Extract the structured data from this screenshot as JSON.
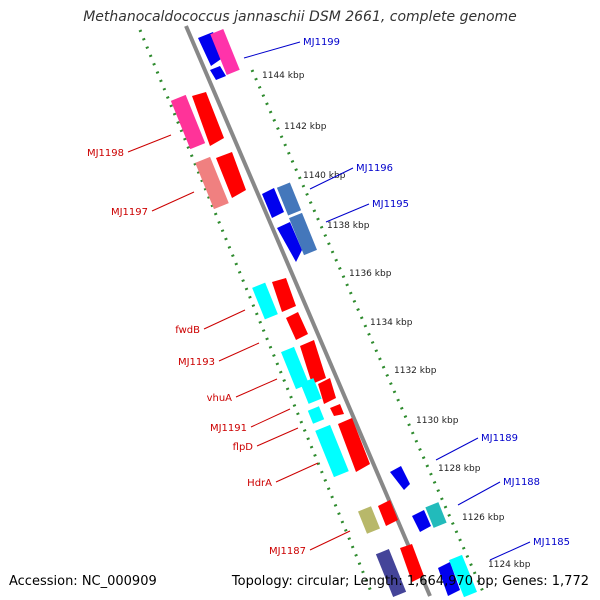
{
  "title": "Methanocaldococcus jannaschii DSM 2661, complete genome",
  "footer": {
    "accession": "Accession: NC_000909",
    "summary": "Topology: circular; Length: 1,664,970 bp; Genes: 1,772"
  },
  "colors": {
    "backbone": "#888888",
    "tick": "#2e8b2e",
    "forward_label": "#0000cc",
    "reverse_label": "#cc0000",
    "tick_label": "#222222"
  },
  "ruler": {
    "labels": [
      "1144 kbp",
      "1142 kbp",
      "1140 kbp",
      "1138 kbp",
      "1136 kbp",
      "1134 kbp",
      "1132 kbp",
      "1130 kbp",
      "1128 kbp",
      "1126 kbp",
      "1124 kbp"
    ]
  },
  "gene_labels": {
    "forward": [
      "MJ1199",
      "MJ1196",
      "MJ1195",
      "MJ1189",
      "MJ1188",
      "MJ1185"
    ],
    "reverse": [
      "MJ1198",
      "MJ1197",
      "fwdB",
      "MJ1193",
      "vhuA",
      "MJ1191",
      "flpD",
      "HdrA",
      "MJ1187"
    ]
  }
}
